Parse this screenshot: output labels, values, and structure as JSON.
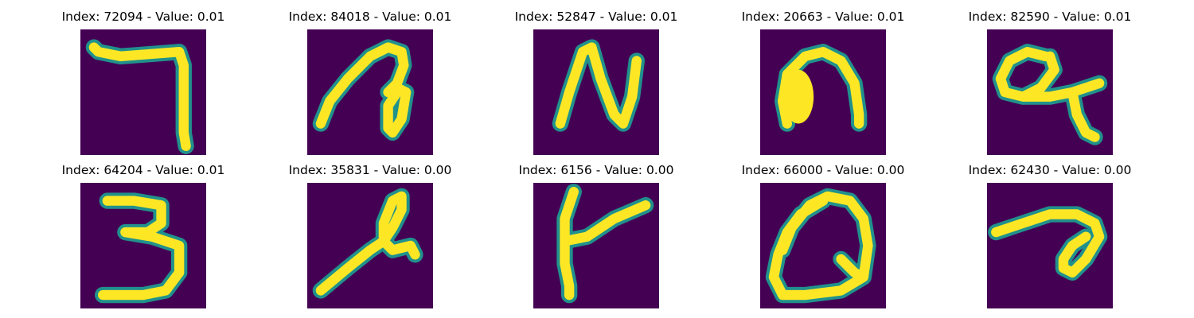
{
  "panels": [
    {
      "index": "72094",
      "value": "0.01",
      "title": "Index: 72094 - Value: 0.01"
    },
    {
      "index": "84018",
      "value": "0.01",
      "title": "Index: 84018 - Value: 0.01"
    },
    {
      "index": "52847",
      "value": "0.01",
      "title": "Index: 52847 - Value: 0.01"
    },
    {
      "index": "20663",
      "value": "0.01",
      "title": "Index: 20663 - Value: 0.01"
    },
    {
      "index": "82590",
      "value": "0.01",
      "title": "Index: 82590 - Value: 0.01"
    },
    {
      "index": "64204",
      "value": "0.01",
      "title": "Index: 64204 - Value: 0.01"
    },
    {
      "index": "35831",
      "value": "0.00",
      "title": "Index: 35831 - Value: 0.00"
    },
    {
      "index": "6156",
      "value": "0.00",
      "title": "Index: 6156 - Value: 0.00"
    },
    {
      "index": "66000",
      "value": "0.00",
      "title": "Index: 66000 - Value: 0.00"
    },
    {
      "index": "62430",
      "value": "0.00",
      "title": "Index: 62430 - Value: 0.00"
    }
  ],
  "colors": {
    "background": "#440154",
    "edge": "#21918c",
    "stroke": "#fde725"
  }
}
